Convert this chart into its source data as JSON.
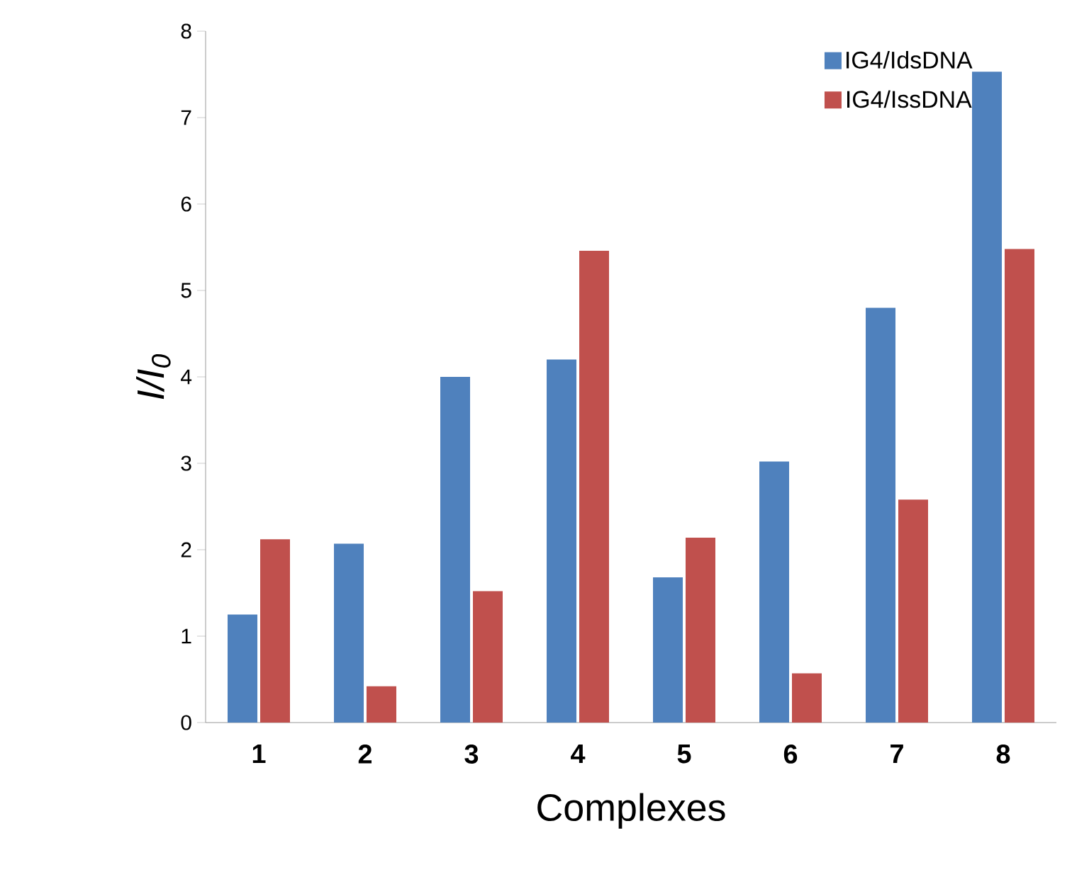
{
  "chart_data": {
    "type": "bar",
    "xlabel": "Complexes",
    "ylabel": "I/I$_{0}$",
    "categories": [
      "1",
      "2",
      "3",
      "4",
      "5",
      "6",
      "7",
      "8"
    ],
    "series": [
      {
        "name": "IG4/IdsDNA",
        "color": "#4f81bd",
        "values": [
          1.25,
          2.07,
          4.0,
          4.2,
          1.68,
          3.02,
          4.8,
          7.53
        ]
      },
      {
        "name": "IG4/IssDNA",
        "color": "#c0504d",
        "values": [
          2.12,
          0.42,
          1.52,
          5.46,
          2.14,
          0.57,
          2.58,
          5.48
        ]
      }
    ],
    "ylim": [
      0,
      8
    ],
    "yticks": [
      0,
      1,
      2,
      3,
      4,
      5,
      6,
      7,
      8
    ],
    "grid": false,
    "legend": "top right"
  }
}
